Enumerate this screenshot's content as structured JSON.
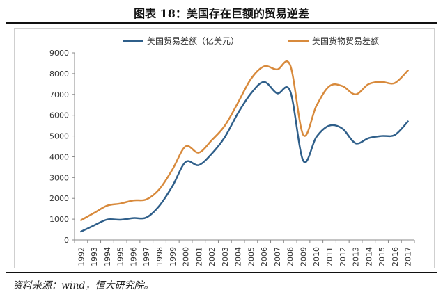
{
  "figure": {
    "title": "图表 18：美国存在巨额的贸易逆差",
    "source": "资料来源：wind，恒大研究院。"
  },
  "colors": {
    "series_trade": "#2f5f8a",
    "series_goods": "#d88a3c",
    "axis": "#888888"
  },
  "chart_data": {
    "type": "line",
    "x": [
      "1992",
      "1993",
      "1994",
      "1995",
      "1996",
      "1997",
      "1998",
      "1999",
      "2000",
      "2001",
      "2002",
      "2003",
      "2004",
      "2005",
      "2006",
      "2007",
      "2008",
      "2009",
      "2010",
      "2011",
      "2012",
      "2013",
      "2014",
      "2015",
      "2016",
      "2017"
    ],
    "series": [
      {
        "name": "美国贸易差额（亿美元）",
        "values": [
          400,
          700,
          980,
          970,
          1050,
          1080,
          1650,
          2600,
          3750,
          3600,
          4150,
          4950,
          6100,
          7050,
          7600,
          7050,
          7150,
          3800,
          4950,
          5500,
          5350,
          4650,
          4900,
          5000,
          5050,
          5700
        ]
      },
      {
        "name": "美国货物贸易差额",
        "values": [
          950,
          1300,
          1650,
          1750,
          1900,
          1950,
          2450,
          3400,
          4500,
          4200,
          4800,
          5500,
          6600,
          7750,
          8350,
          8200,
          8400,
          5050,
          6450,
          7400,
          7400,
          7000,
          7500,
          7600,
          7550,
          8150
        ]
      }
    ],
    "yticks": [
      0,
      1000,
      2000,
      3000,
      4000,
      5000,
      6000,
      7000,
      8000,
      9000
    ],
    "ylim": [
      0,
      9000
    ],
    "grid": false,
    "legend_position": "top"
  }
}
